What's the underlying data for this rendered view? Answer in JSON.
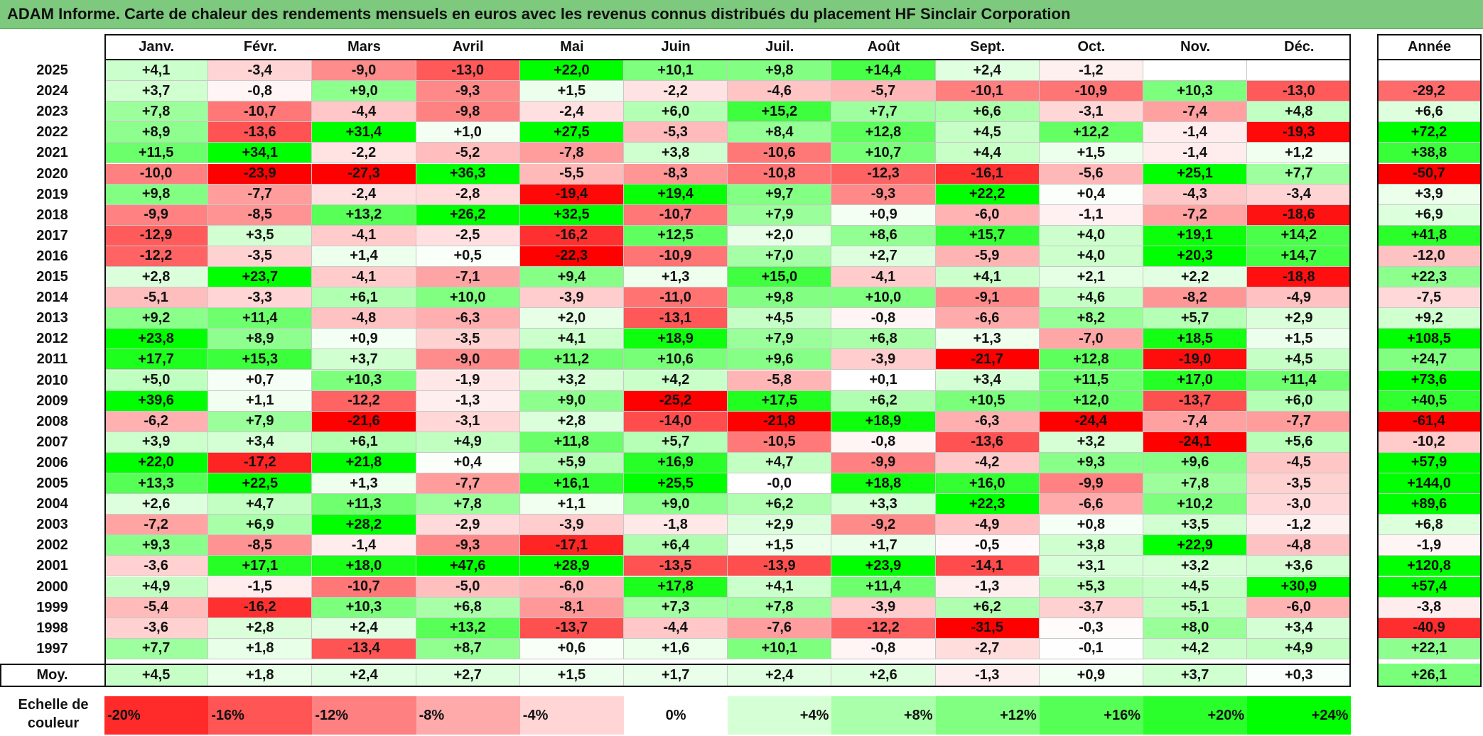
{
  "title": "ADAM Informe. Carte de chaleur des rendements mensuels en euros avec les revenus connus distribués du placement HF Sinclair Corporation",
  "chart_data": {
    "type": "heatmap",
    "title": "ADAM Informe. Carte de chaleur des rendements mensuels en euros avec les revenus connus distribués du placement HF Sinclair Corporation",
    "columns": [
      "Janv.",
      "Févr.",
      "Mars",
      "Avril",
      "Mai",
      "Juin",
      "Juil.",
      "Août",
      "Sept.",
      "Oct.",
      "Nov.",
      "Déc."
    ],
    "year_column": "Année",
    "rows": [
      {
        "year": "2025",
        "values": [
          "+4,1",
          "-3,4",
          "-9,0",
          "-13,0",
          "+22,0",
          "+10,1",
          "+9,8",
          "+14,4",
          "+2,4",
          "-1,2",
          "",
          ""
        ],
        "annual": ""
      },
      {
        "year": "2024",
        "values": [
          "+3,7",
          "-0,8",
          "+9,0",
          "-9,3",
          "+1,5",
          "-2,2",
          "-4,6",
          "-5,7",
          "-10,1",
          "-10,9",
          "+10,3",
          "-13,0"
        ],
        "annual": "-29,2"
      },
      {
        "year": "2023",
        "values": [
          "+7,8",
          "-10,7",
          "-4,4",
          "-9,8",
          "-2,4",
          "+6,0",
          "+15,2",
          "+7,7",
          "+6,6",
          "-3,1",
          "-7,4",
          "+4,8"
        ],
        "annual": "+6,6"
      },
      {
        "year": "2022",
        "values": [
          "+8,9",
          "-13,6",
          "+31,4",
          "+1,0",
          "+27,5",
          "-5,3",
          "+8,4",
          "+12,8",
          "+4,5",
          "+12,2",
          "-1,4",
          "-19,3"
        ],
        "annual": "+72,2"
      },
      {
        "year": "2021",
        "values": [
          "+11,5",
          "+34,1",
          "-2,2",
          "-5,2",
          "-7,8",
          "+3,8",
          "-10,6",
          "+10,7",
          "+4,4",
          "+1,5",
          "-1,4",
          "+1,2"
        ],
        "annual": "+38,8"
      },
      {
        "year": "2020",
        "values": [
          "-10,0",
          "-23,9",
          "-27,3",
          "+36,3",
          "-5,5",
          "-8,3",
          "-10,8",
          "-12,3",
          "-16,1",
          "-5,6",
          "+25,1",
          "+7,7"
        ],
        "annual": "-50,7"
      },
      {
        "year": "2019",
        "values": [
          "+9,8",
          "-7,7",
          "-2,4",
          "-2,8",
          "-19,4",
          "+19,4",
          "+9,7",
          "-9,3",
          "+22,2",
          "+0,4",
          "-4,3",
          "-3,4"
        ],
        "annual": "+3,9"
      },
      {
        "year": "2018",
        "values": [
          "-9,9",
          "-8,5",
          "+13,2",
          "+26,2",
          "+32,5",
          "-10,7",
          "+7,9",
          "+0,9",
          "-6,0",
          "-1,1",
          "-7,2",
          "-18,6"
        ],
        "annual": "+6,9"
      },
      {
        "year": "2017",
        "values": [
          "-12,9",
          "+3,5",
          "-4,1",
          "-2,5",
          "-16,2",
          "+12,5",
          "+2,0",
          "+8,6",
          "+15,7",
          "+4,0",
          "+19,1",
          "+14,2"
        ],
        "annual": "+41,8"
      },
      {
        "year": "2016",
        "values": [
          "-12,2",
          "-3,5",
          "+1,4",
          "+0,5",
          "-22,3",
          "-10,9",
          "+7,0",
          "+2,7",
          "-5,9",
          "+4,0",
          "+20,3",
          "+14,7"
        ],
        "annual": "-12,0"
      },
      {
        "year": "2015",
        "values": [
          "+2,8",
          "+23,7",
          "-4,1",
          "-7,1",
          "+9,4",
          "+1,3",
          "+15,0",
          "-4,1",
          "+4,1",
          "+2,1",
          "+2,2",
          "-18,8"
        ],
        "annual": "+22,3"
      },
      {
        "year": "2014",
        "values": [
          "-5,1",
          "-3,3",
          "+6,1",
          "+10,0",
          "-3,9",
          "-11,0",
          "+9,8",
          "+10,0",
          "-9,1",
          "+4,6",
          "-8,2",
          "-4,9"
        ],
        "annual": "-7,5"
      },
      {
        "year": "2013",
        "values": [
          "+9,2",
          "+11,4",
          "-4,8",
          "-6,3",
          "+2,0",
          "-13,1",
          "+4,5",
          "-0,8",
          "-6,6",
          "+8,2",
          "+5,7",
          "+2,9"
        ],
        "annual": "+9,2"
      },
      {
        "year": "2012",
        "values": [
          "+23,8",
          "+8,9",
          "+0,9",
          "-3,5",
          "+4,1",
          "+18,9",
          "+7,9",
          "+6,8",
          "+1,3",
          "-7,0",
          "+18,5",
          "+1,5"
        ],
        "annual": "+108,5"
      },
      {
        "year": "2011",
        "values": [
          "+17,7",
          "+15,3",
          "+3,7",
          "-9,0",
          "+11,2",
          "+10,6",
          "+9,6",
          "-3,9",
          "-21,7",
          "+12,8",
          "-19,0",
          "+4,5"
        ],
        "annual": "+24,7"
      },
      {
        "year": "2010",
        "values": [
          "+5,0",
          "+0,7",
          "+10,3",
          "-1,9",
          "+3,2",
          "+4,2",
          "-5,8",
          "+0,1",
          "+3,4",
          "+11,5",
          "+17,0",
          "+11,4"
        ],
        "annual": "+73,6"
      },
      {
        "year": "2009",
        "values": [
          "+39,6",
          "+1,1",
          "-12,2",
          "-1,3",
          "+9,0",
          "-25,2",
          "+17,5",
          "+6,2",
          "+10,5",
          "+12,0",
          "-13,7",
          "+6,0"
        ],
        "annual": "+40,5"
      },
      {
        "year": "2008",
        "values": [
          "-6,2",
          "+7,9",
          "-21,6",
          "-3,1",
          "+2,8",
          "-14,0",
          "-21,8",
          "+18,9",
          "-6,3",
          "-24,4",
          "-7,4",
          "-7,7"
        ],
        "annual": "-61,4"
      },
      {
        "year": "2007",
        "values": [
          "+3,9",
          "+3,4",
          "+6,1",
          "+4,9",
          "+11,8",
          "+5,7",
          "-10,5",
          "-0,8",
          "-13,6",
          "+3,2",
          "-24,1",
          "+5,6"
        ],
        "annual": "-10,2"
      },
      {
        "year": "2006",
        "values": [
          "+22,0",
          "-17,2",
          "+21,8",
          "+0,4",
          "+5,9",
          "+16,9",
          "+4,7",
          "-9,9",
          "-4,2",
          "+9,3",
          "+9,6",
          "-4,5"
        ],
        "annual": "+57,9"
      },
      {
        "year": "2005",
        "values": [
          "+13,3",
          "+22,5",
          "+1,3",
          "-7,7",
          "+16,1",
          "+25,5",
          "-0,0",
          "+18,8",
          "+16,0",
          "-9,9",
          "+7,8",
          "-3,5"
        ],
        "annual": "+144,0"
      },
      {
        "year": "2004",
        "values": [
          "+2,6",
          "+4,7",
          "+11,3",
          "+7,8",
          "+1,1",
          "+9,0",
          "+6,2",
          "+3,3",
          "+22,3",
          "-6,6",
          "+10,2",
          "-3,0"
        ],
        "annual": "+89,6"
      },
      {
        "year": "2003",
        "values": [
          "-7,2",
          "+6,9",
          "+28,2",
          "-2,9",
          "-3,9",
          "-1,8",
          "+2,9",
          "-9,2",
          "-4,9",
          "+0,8",
          "+3,5",
          "-1,2"
        ],
        "annual": "+6,8"
      },
      {
        "year": "2002",
        "values": [
          "+9,3",
          "-8,5",
          "-1,4",
          "-9,3",
          "-17,1",
          "+6,4",
          "+1,5",
          "+1,7",
          "-0,5",
          "+3,8",
          "+22,9",
          "-4,8"
        ],
        "annual": "-1,9"
      },
      {
        "year": "2001",
        "values": [
          "-3,6",
          "+17,1",
          "+18,0",
          "+47,6",
          "+28,9",
          "-13,5",
          "-13,9",
          "+23,9",
          "-14,1",
          "+3,1",
          "+3,2",
          "+3,6"
        ],
        "annual": "+120,8"
      },
      {
        "year": "2000",
        "values": [
          "+4,9",
          "-1,5",
          "-10,7",
          "-5,0",
          "-6,0",
          "+17,8",
          "+4,1",
          "+11,4",
          "-1,3",
          "+5,3",
          "+4,5",
          "+30,9"
        ],
        "annual": "+57,4"
      },
      {
        "year": "1999",
        "values": [
          "-5,4",
          "-16,2",
          "+10,3",
          "+6,8",
          "-8,1",
          "+7,3",
          "+7,8",
          "-3,9",
          "+6,2",
          "-3,7",
          "+5,1",
          "-6,0"
        ],
        "annual": "-3,8"
      },
      {
        "year": "1998",
        "values": [
          "-3,6",
          "+2,8",
          "+2,4",
          "+13,2",
          "-13,7",
          "-4,4",
          "-7,6",
          "-12,2",
          "-31,5",
          "-0,3",
          "+8,0",
          "+3,4"
        ],
        "annual": "-40,9"
      },
      {
        "year": "1997",
        "values": [
          "+7,7",
          "+1,8",
          "-13,4",
          "+8,7",
          "+0,6",
          "+1,6",
          "+10,1",
          "-0,8",
          "-2,7",
          "-0,1",
          "+4,2",
          "+4,9"
        ],
        "annual": "+22,1"
      }
    ],
    "average_row": {
      "label": "Moy.",
      "values": [
        "+4,5",
        "+1,8",
        "+2,4",
        "+2,7",
        "+1,5",
        "+1,7",
        "+2,4",
        "+2,6",
        "-1,3",
        "+0,9",
        "+3,7",
        "+0,3"
      ],
      "annual": "+26,1"
    },
    "scale": {
      "label": "Echelle de couleur",
      "steps": [
        "-20%",
        "-16%",
        "-12%",
        "-8%",
        "-4%",
        "0%",
        "+4%",
        "+8%",
        "+12%",
        "+16%",
        "+20%",
        "+24%"
      ]
    },
    "colors": {
      "negative": "#ff0000",
      "neutral": "#ffffff",
      "positive": "#00ff00",
      "title_bar": "#7dc97d"
    }
  }
}
